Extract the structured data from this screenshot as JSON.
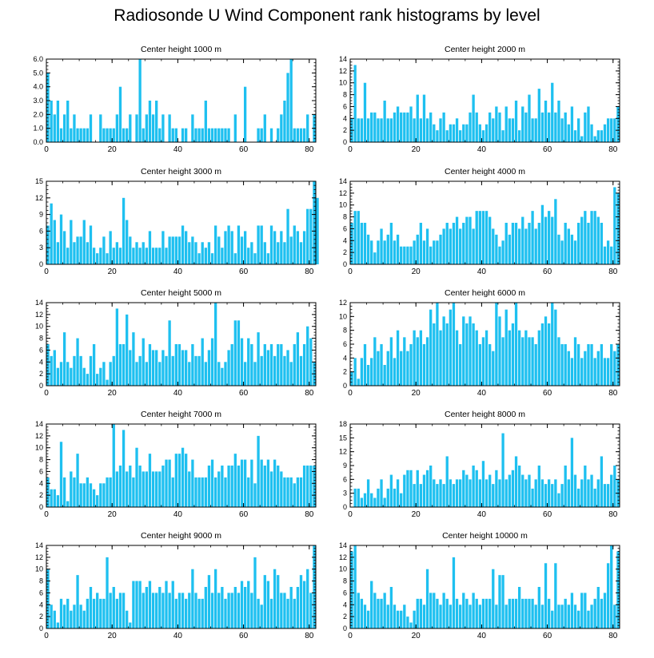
{
  "figure": {
    "title": "Radiosonde U Wind Component rank histograms by level",
    "bar_color": "#1ec0f0",
    "axis_color": "#000000"
  },
  "chart_data": [
    {
      "type": "bar",
      "title": "Center height 1000 m",
      "xlim": [
        0,
        82
      ],
      "ylim": [
        0,
        6
      ],
      "xticks": [
        0,
        20,
        40,
        60,
        80
      ],
      "yticks": [
        0,
        1,
        2,
        3,
        4,
        5,
        6
      ],
      "ytick_labels": [
        "0.0",
        "1.0",
        "2.0",
        "3.0",
        "4.0",
        "5.0",
        "6.0"
      ],
      "values": [
        5,
        3,
        2,
        3,
        1,
        2,
        3,
        1,
        2,
        1,
        1,
        1,
        1,
        2,
        0,
        0,
        2,
        1,
        1,
        1,
        1,
        2,
        4,
        1,
        1,
        2,
        0,
        2,
        6,
        1,
        2,
        3,
        2,
        3,
        1,
        2,
        0,
        2,
        1,
        1,
        0,
        1,
        1,
        0,
        2,
        1,
        1,
        1,
        3,
        1,
        1,
        1,
        1,
        1,
        1,
        1,
        0,
        2,
        0,
        0,
        4,
        0,
        0,
        0,
        1,
        1,
        2,
        0,
        1,
        0,
        1,
        2,
        3,
        5,
        6,
        1,
        1,
        1,
        1,
        2,
        0,
        2
      ]
    },
    {
      "type": "bar",
      "title": "Center height 2000 m",
      "xlim": [
        0,
        82
      ],
      "ylim": [
        0,
        14
      ],
      "xticks": [
        0,
        20,
        40,
        60,
        80
      ],
      "yticks": [
        0,
        2,
        4,
        6,
        8,
        10,
        12,
        14
      ],
      "ytick_labels": [
        "0",
        "2",
        "4",
        "6",
        "8",
        "10",
        "12",
        "14"
      ],
      "values": [
        4,
        13,
        4,
        4,
        10,
        4,
        5,
        5,
        4,
        4,
        7,
        4,
        4,
        5,
        6,
        5,
        5,
        5,
        6,
        4,
        8,
        4,
        8,
        4,
        5,
        3,
        2,
        4,
        5,
        2,
        3,
        3,
        4,
        2,
        3,
        3,
        5,
        8,
        5,
        3,
        2,
        3,
        5,
        4,
        6,
        5,
        2,
        6,
        4,
        4,
        7,
        2,
        6,
        5,
        8,
        4,
        4,
        9,
        5,
        7,
        5,
        10,
        5,
        7,
        4,
        5,
        3,
        6,
        2,
        4,
        1,
        5,
        6,
        3,
        1,
        2,
        2,
        3,
        4,
        4,
        4,
        6
      ]
    },
    {
      "type": "bar",
      "title": "Center height 3000 m",
      "xlim": [
        0,
        82
      ],
      "ylim": [
        0,
        15
      ],
      "xticks": [
        0,
        20,
        40,
        60,
        80
      ],
      "yticks": [
        0,
        3,
        6,
        9,
        12,
        15
      ],
      "ytick_labels": [
        "0",
        "3",
        "6",
        "9",
        "12",
        "15"
      ],
      "values": [
        7,
        11,
        8,
        4,
        9,
        6,
        3,
        8,
        4,
        5,
        5,
        8,
        4,
        7,
        3,
        2,
        3,
        5,
        2,
        6,
        3,
        4,
        3,
        12,
        8,
        5,
        3,
        4,
        3,
        4,
        3,
        6,
        3,
        3,
        3,
        6,
        3,
        5,
        5,
        5,
        5,
        7,
        6,
        4,
        5,
        4,
        2,
        4,
        3,
        4,
        2,
        7,
        5,
        3,
        6,
        7,
        6,
        2,
        7,
        5,
        6,
        3,
        4,
        2,
        7,
        7,
        4,
        2,
        7,
        6,
        4,
        6,
        4,
        10,
        5,
        7,
        6,
        4,
        6,
        10,
        10,
        15,
        12
      ]
    },
    {
      "type": "bar",
      "title": "Center height 4000 m",
      "xlim": [
        0,
        82
      ],
      "ylim": [
        0,
        14
      ],
      "xticks": [
        0,
        20,
        40,
        60,
        80
      ],
      "yticks": [
        0,
        2,
        4,
        6,
        8,
        10,
        12,
        14
      ],
      "ytick_labels": [
        "0",
        "2",
        "4",
        "6",
        "8",
        "10",
        "12",
        "14"
      ],
      "values": [
        7,
        9,
        9,
        7,
        7,
        5,
        4,
        2,
        4,
        6,
        4,
        5,
        7,
        4,
        5,
        3,
        3,
        3,
        3,
        4,
        5,
        7,
        4,
        6,
        3,
        4,
        4,
        5,
        6,
        7,
        6,
        7,
        8,
        6,
        7,
        8,
        8,
        6,
        9,
        9,
        9,
        9,
        8,
        6,
        5,
        3,
        4,
        7,
        5,
        7,
        7,
        6,
        8,
        6,
        7,
        9,
        6,
        7,
        10,
        8,
        9,
        8,
        11,
        5,
        4,
        7,
        6,
        5,
        4,
        7,
        8,
        9,
        7,
        9,
        9,
        8,
        7,
        3,
        4,
        3,
        13,
        12
      ]
    },
    {
      "type": "bar",
      "title": "Center height 5000 m",
      "xlim": [
        0,
        82
      ],
      "ylim": [
        0,
        14
      ],
      "xticks": [
        0,
        20,
        40,
        60,
        80
      ],
      "yticks": [
        0,
        2,
        4,
        6,
        8,
        10,
        12,
        14
      ],
      "ytick_labels": [
        "0",
        "2",
        "4",
        "6",
        "8",
        "10",
        "12",
        "14"
      ],
      "values": [
        7,
        5,
        6,
        3,
        4,
        9,
        4,
        3,
        5,
        8,
        5,
        3,
        2,
        5,
        7,
        2,
        3,
        4,
        1,
        4,
        5,
        13,
        7,
        7,
        12,
        6,
        9,
        4,
        5,
        8,
        4,
        7,
        6,
        6,
        4,
        6,
        5,
        11,
        5,
        7,
        7,
        6,
        6,
        4,
        7,
        5,
        5,
        8,
        4,
        6,
        8,
        14,
        4,
        3,
        4,
        6,
        7,
        11,
        11,
        8,
        4,
        8,
        7,
        4,
        9,
        5,
        7,
        6,
        7,
        5,
        7,
        7,
        5,
        6,
        4,
        7,
        9,
        5,
        7,
        10,
        8,
        4
      ]
    },
    {
      "type": "bar",
      "title": "Center height 6000 m",
      "xlim": [
        0,
        82
      ],
      "ylim": [
        0,
        12
      ],
      "xticks": [
        0,
        20,
        40,
        60,
        80
      ],
      "yticks": [
        0,
        2,
        4,
        6,
        8,
        10,
        12
      ],
      "ytick_labels": [
        "0",
        "2",
        "4",
        "6",
        "8",
        "10",
        "12"
      ],
      "values": [
        2,
        4,
        1,
        4,
        6,
        3,
        4,
        7,
        5,
        6,
        3,
        5,
        7,
        4,
        8,
        5,
        7,
        5,
        6,
        8,
        7,
        8,
        6,
        7,
        11,
        9,
        12,
        8,
        10,
        9,
        11,
        12,
        8,
        6,
        10,
        9,
        10,
        9,
        8,
        6,
        7,
        8,
        6,
        5,
        12,
        10,
        7,
        11,
        8,
        9,
        12,
        8,
        7,
        8,
        7,
        7,
        6,
        8,
        9,
        10,
        9,
        12,
        11,
        7,
        6,
        6,
        5,
        4,
        7,
        6,
        4,
        5,
        6,
        6,
        4,
        5,
        6,
        4,
        4,
        6,
        5,
        6
      ]
    },
    {
      "type": "bar",
      "title": "Center height 7000 m",
      "xlim": [
        0,
        82
      ],
      "ylim": [
        0,
        14
      ],
      "xticks": [
        0,
        20,
        40,
        60,
        80
      ],
      "yticks": [
        0,
        2,
        4,
        6,
        8,
        10,
        12,
        14
      ],
      "ytick_labels": [
        "0",
        "2",
        "4",
        "6",
        "8",
        "10",
        "12",
        "14"
      ],
      "values": [
        5,
        3,
        3,
        2,
        11,
        5,
        1,
        6,
        5,
        9,
        4,
        4,
        5,
        4,
        3,
        2,
        4,
        4,
        5,
        5,
        14,
        6,
        7,
        13,
        6,
        7,
        5,
        10,
        7,
        6,
        6,
        9,
        6,
        6,
        6,
        7,
        8,
        8,
        5,
        9,
        9,
        10,
        9,
        6,
        8,
        5,
        5,
        5,
        5,
        7,
        8,
        5,
        6,
        7,
        5,
        7,
        7,
        9,
        7,
        8,
        8,
        5,
        8,
        4,
        12,
        8,
        7,
        8,
        6,
        8,
        7,
        6,
        5,
        5,
        5,
        4,
        5,
        5,
        7,
        7,
        7,
        7
      ]
    },
    {
      "type": "bar",
      "title": "Center height 8000 m",
      "xlim": [
        0,
        82
      ],
      "ylim": [
        0,
        18
      ],
      "xticks": [
        0,
        20,
        40,
        60,
        80
      ],
      "yticks": [
        0,
        3,
        6,
        9,
        12,
        15,
        18
      ],
      "ytick_labels": [
        "0",
        "3",
        "6",
        "9",
        "12",
        "15",
        "18"
      ],
      "values": [
        0,
        4,
        4,
        2,
        3,
        6,
        3,
        2,
        4,
        6,
        2,
        4,
        7,
        4,
        6,
        3,
        7,
        8,
        8,
        5,
        8,
        5,
        7,
        8,
        9,
        6,
        5,
        6,
        5,
        11,
        6,
        5,
        6,
        6,
        8,
        7,
        6,
        9,
        8,
        6,
        10,
        6,
        7,
        5,
        8,
        6,
        16,
        6,
        7,
        8,
        11,
        9,
        7,
        6,
        7,
        4,
        6,
        9,
        6,
        5,
        6,
        5,
        6,
        3,
        5,
        9,
        6,
        15,
        7,
        4,
        6,
        9,
        6,
        7,
        4,
        6,
        11,
        5,
        5,
        7,
        9,
        6
      ]
    },
    {
      "type": "bar",
      "title": "Center height 9000 m",
      "xlim": [
        0,
        82
      ],
      "ylim": [
        0,
        14
      ],
      "xticks": [
        0,
        20,
        40,
        60,
        80
      ],
      "yticks": [
        0,
        2,
        4,
        6,
        8,
        10,
        12,
        14
      ],
      "ytick_labels": [
        "0",
        "2",
        "4",
        "6",
        "8",
        "10",
        "12",
        "14"
      ],
      "values": [
        10,
        4,
        3,
        1,
        5,
        4,
        5,
        3,
        4,
        9,
        4,
        3,
        5,
        7,
        5,
        6,
        5,
        5,
        12,
        6,
        7,
        5,
        6,
        6,
        3,
        1,
        8,
        8,
        8,
        6,
        7,
        8,
        6,
        6,
        7,
        6,
        8,
        6,
        8,
        5,
        6,
        6,
        5,
        6,
        10,
        6,
        5,
        5,
        7,
        9,
        6,
        10,
        6,
        7,
        5,
        6,
        6,
        7,
        6,
        8,
        7,
        8,
        6,
        12,
        5,
        4,
        9,
        8,
        5,
        10,
        9,
        6,
        6,
        5,
        7,
        5,
        7,
        9,
        8,
        10,
        6,
        14
      ]
    },
    {
      "type": "bar",
      "title": "Center height 10000 m",
      "xlim": [
        0,
        82
      ],
      "ylim": [
        0,
        14
      ],
      "xticks": [
        0,
        20,
        40,
        60,
        80
      ],
      "yticks": [
        0,
        2,
        4,
        6,
        8,
        10,
        12,
        14
      ],
      "ytick_labels": [
        "0",
        "2",
        "4",
        "6",
        "8",
        "10",
        "12",
        "14"
      ],
      "values": [
        13,
        14,
        6,
        5,
        4,
        3,
        8,
        6,
        5,
        5,
        6,
        4,
        7,
        4,
        3,
        3,
        4,
        2,
        1,
        3,
        5,
        5,
        4,
        10,
        6,
        6,
        5,
        4,
        6,
        5,
        4,
        12,
        5,
        4,
        6,
        5,
        4,
        6,
        5,
        4,
        5,
        5,
        5,
        10,
        4,
        9,
        9,
        4,
        5,
        5,
        5,
        7,
        5,
        5,
        5,
        5,
        4,
        7,
        4,
        11,
        5,
        3,
        11,
        4,
        4,
        5,
        4,
        6,
        4,
        3,
        6,
        6,
        3,
        4,
        5,
        7,
        5,
        6,
        11,
        14,
        4,
        13
      ]
    }
  ]
}
